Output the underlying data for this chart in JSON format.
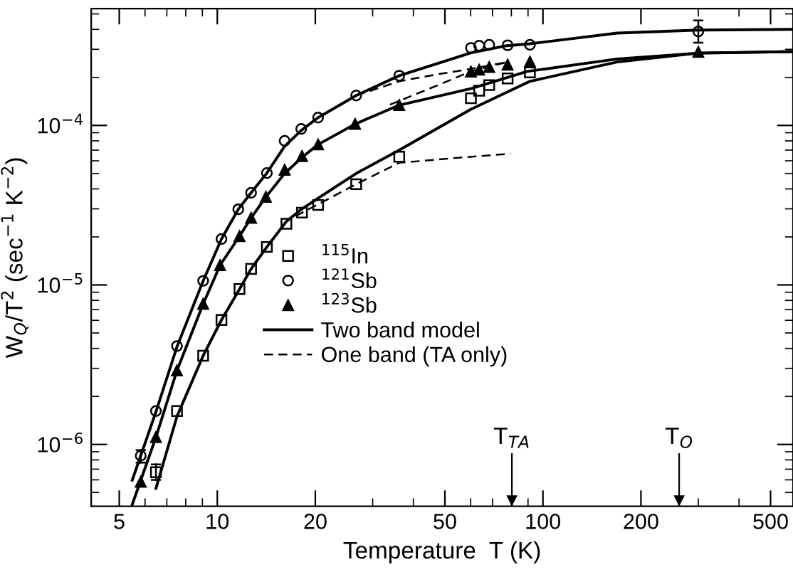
{
  "chart_data": {
    "type": "scatter",
    "xlabel": "Temperature  T (K)",
    "ylabel": "W$_{Q}$/T$^{2}$ (sec$^{−1}$ K$^{−2}$)",
    "log": "xy",
    "xlim": [
      4.1,
      586
    ],
    "ylim": [
      4.1e-07,
      0.00054
    ],
    "xticks": [
      5,
      10,
      20,
      50,
      100,
      200,
      500
    ],
    "yticks": [
      {
        "value": 1e-06,
        "label": "10$^{−6}$"
      },
      {
        "value": 1e-05,
        "label": "10$^{−5}$"
      },
      {
        "value": 0.0001,
        "label": "10$^{−4}$"
      }
    ],
    "grid": false,
    "legend": "center",
    "series": [
      {
        "name": "$^{115}$In",
        "color": "#000000",
        "marker": "square",
        "x": [
          6.48,
          7.52,
          9.05,
          10.3,
          11.7,
          12.7,
          14.2,
          16.3,
          18.2,
          20.4,
          26.7,
          36.2,
          60.1,
          63.7,
          68.4,
          77.9,
          91.2
        ],
        "values": [
          6.7e-07,
          1.62e-06,
          3.6e-06,
          6.03e-06,
          9.42e-06,
          1.26e-05,
          1.73e-05,
          2.42e-05,
          2.84e-05,
          3.17e-05,
          4.28e-05,
          6.37e-05,
          0.000148,
          0.000165,
          0.000179,
          0.000197,
          0.000215
        ],
        "errors": [
          [
            6e-07,
            7.5e-07
          ],
          null,
          null,
          null,
          null,
          null,
          null,
          null,
          null,
          null,
          null,
          null,
          null,
          null,
          null,
          null,
          null
        ]
      },
      {
        "name": "$^{121}$Sb",
        "color": "#000000",
        "marker": "circle",
        "x": [
          5.82,
          6.48,
          7.52,
          9.05,
          10.3,
          11.6,
          12.7,
          14.2,
          16.1,
          18.1,
          20.4,
          26.7,
          36.2,
          60.1,
          63.7,
          68.4,
          77.9,
          91.2,
          300
        ],
        "values": [
          8.5e-07,
          1.62e-06,
          4.14e-06,
          1.06e-05,
          1.94e-05,
          2.98e-05,
          3.78e-05,
          5.03e-05,
          8e-05,
          9.5e-05,
          0.000112,
          0.000154,
          0.000205,
          0.000306,
          0.000316,
          0.00032,
          0.000318,
          0.00032,
          0.000388
        ],
        "errors": [
          [
            7.7e-07,
            9.2e-07
          ],
          null,
          null,
          null,
          null,
          null,
          null,
          null,
          null,
          null,
          null,
          null,
          null,
          null,
          null,
          null,
          null,
          null,
          [
            0.00033,
            0.000455
          ]
        ]
      },
      {
        "name": "$^{123}$Sb",
        "color": "#000000",
        "marker": "triangle",
        "x": [
          5.82,
          6.48,
          7.52,
          9.05,
          10.2,
          11.7,
          12.7,
          14.1,
          16.1,
          18.2,
          20.4,
          26.5,
          36.2,
          60.1,
          63.7,
          68.4,
          77.9,
          91.2,
          300
        ],
        "values": [
          5.83e-07,
          1.11e-06,
          2.91e-06,
          7.6e-06,
          1.33e-05,
          2.02e-05,
          2.63e-05,
          3.56e-05,
          5.26e-05,
          6.41e-05,
          7.59e-05,
          0.000102,
          0.000134,
          0.000217,
          0.000223,
          0.000232,
          0.00024,
          0.000251,
          0.000289
        ]
      },
      {
        "type": "line",
        "name": "Two band model",
        "color": "#000000",
        "marker": "none",
        "line_style": "solid",
        "x": [
          5.48,
          6.48,
          7.52,
          9.05,
          10.3,
          11.6,
          12.7,
          14.2,
          16.1,
          18.1,
          20.4,
          26.7,
          36.2,
          60,
          76.5,
          91.2,
          169,
          300,
          580
        ],
        "values": [
          5.97e-07,
          1.6e-06,
          4.1e-06,
          1.06e-05,
          1.94e-05,
          2.98e-05,
          3.78e-05,
          5.03e-05,
          7.4e-05,
          9.3e-05,
          0.000112,
          0.000154,
          0.000205,
          0.000285,
          0.000315,
          0.000325,
          0.000379,
          0.000396,
          0.0004
        ]
      },
      {
        "type": "line",
        "color": "#000000",
        "marker": "none",
        "line_style": "solid",
        "x": [
          5.48,
          6.48,
          7.52,
          9.05,
          10.2,
          11.7,
          12.7,
          14.1,
          16.1,
          18.2,
          20.4,
          26.5,
          36.2,
          60,
          89.5,
          169,
          300,
          580
        ],
        "values": [
          4.2e-07,
          1.11e-06,
          2.91e-06,
          7.6e-06,
          1.33e-05,
          2.02e-05,
          2.63e-05,
          3.56e-05,
          5e-05,
          6.3e-05,
          7.59e-05,
          0.000102,
          0.000134,
          0.00017,
          0.000218,
          0.000261,
          0.000284,
          0.00029
        ]
      },
      {
        "type": "line",
        "color": "#000000",
        "marker": "none",
        "line_style": "solid",
        "x": [
          6.48,
          7.52,
          9.05,
          10.3,
          11.7,
          12.7,
          14.2,
          16.3,
          18.2,
          20.4,
          26.7,
          36.2,
          60,
          91.2,
          169,
          300,
          580
        ],
        "values": [
          5.3e-07,
          1.5e-06,
          3.6e-06,
          6.03e-06,
          9.4e-06,
          1.26e-05,
          1.73e-05,
          2.5e-05,
          3e-05,
          3.5e-05,
          5e-05,
          7e-05,
          0.000126,
          0.000189,
          0.00025,
          0.000284,
          0.00029
        ]
      },
      {
        "type": "line",
        "name": "One band (TA only)",
        "color": "#000000",
        "marker": "none",
        "line_style": "dashed",
        "x": [
          26.7,
          36.2,
          48,
          60,
          78
        ],
        "values": [
          0.000154,
          0.000189,
          0.00021,
          0.000226,
          0.00025
        ]
      },
      {
        "type": "line",
        "color": "#000000",
        "marker": "none",
        "line_style": "dashed",
        "x": [
          33.9,
          48,
          60,
          78
        ],
        "values": [
          0.000135,
          0.00018,
          0.000218,
          0.00025
        ]
      },
      {
        "type": "line",
        "color": "#000000",
        "marker": "none",
        "line_style": "dashed",
        "x": [
          17.4,
          26.7,
          36.2,
          55,
          79.5
        ],
        "values": [
          2.7e-05,
          4.28e-05,
          5.83e-05,
          6.27e-05,
          6.65e-05
        ]
      }
    ],
    "ref_lines": [
      {
        "axis": "x",
        "value": 80.3,
        "label": "T$_{TA}$"
      },
      {
        "axis": "x",
        "value": 262,
        "label": "T$_{O}$"
      }
    ]
  }
}
